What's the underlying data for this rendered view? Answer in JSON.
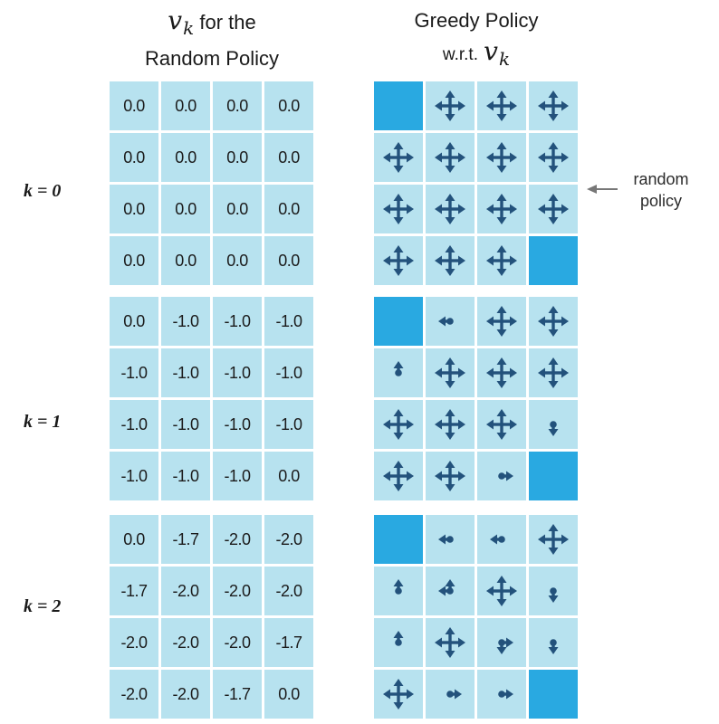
{
  "header_left": {
    "symbol": "v",
    "subscript": "k",
    "suffix": "for the",
    "line2": "Random Policy"
  },
  "header_right": {
    "line1": "Greedy Policy",
    "line2_prefix": "w.r.t.",
    "symbol": "v",
    "subscript": "k"
  },
  "annotation": {
    "line1": "random",
    "line2": "policy"
  },
  "colors": {
    "cell": "#b7e2ef",
    "terminal": "#29a9e1",
    "arrow": "#23527c"
  },
  "blocks": [
    {
      "label": "k = 0",
      "values": [
        [
          "0.0",
          "0.0",
          "0.0",
          "0.0"
        ],
        [
          "0.0",
          "0.0",
          "0.0",
          "0.0"
        ],
        [
          "0.0",
          "0.0",
          "0.0",
          "0.0"
        ],
        [
          "0.0",
          "0.0",
          "0.0",
          "0.0"
        ]
      ],
      "policy": [
        [
          "T",
          "NSEW",
          "NSEW",
          "NSEW"
        ],
        [
          "NSEW",
          "NSEW",
          "NSEW",
          "NSEW"
        ],
        [
          "NSEW",
          "NSEW",
          "NSEW",
          "NSEW"
        ],
        [
          "NSEW",
          "NSEW",
          "NSEW",
          "T"
        ]
      ]
    },
    {
      "label": "k = 1",
      "values": [
        [
          "0.0",
          "-1.0",
          "-1.0",
          "-1.0"
        ],
        [
          "-1.0",
          "-1.0",
          "-1.0",
          "-1.0"
        ],
        [
          "-1.0",
          "-1.0",
          "-1.0",
          "-1.0"
        ],
        [
          "-1.0",
          "-1.0",
          "-1.0",
          "0.0"
        ]
      ],
      "policy": [
        [
          "T",
          "W",
          "NSEW",
          "NSEW"
        ],
        [
          "N",
          "NSEW",
          "NSEW",
          "NSEW"
        ],
        [
          "NSEW",
          "NSEW",
          "NSEW",
          "S"
        ],
        [
          "NSEW",
          "NSEW",
          "E",
          "T"
        ]
      ]
    },
    {
      "label": "k = 2",
      "values": [
        [
          "0.0",
          "-1.7",
          "-2.0",
          "-2.0"
        ],
        [
          "-1.7",
          "-2.0",
          "-2.0",
          "-2.0"
        ],
        [
          "-2.0",
          "-2.0",
          "-2.0",
          "-1.7"
        ],
        [
          "-2.0",
          "-2.0",
          "-1.7",
          "0.0"
        ]
      ],
      "policy": [
        [
          "T",
          "W",
          "W",
          "NSEW"
        ],
        [
          "N",
          "NW",
          "NSEW",
          "S"
        ],
        [
          "N",
          "NSEW",
          "SE",
          "S"
        ],
        [
          "NSEW",
          "E",
          "E",
          "T"
        ]
      ]
    }
  ]
}
